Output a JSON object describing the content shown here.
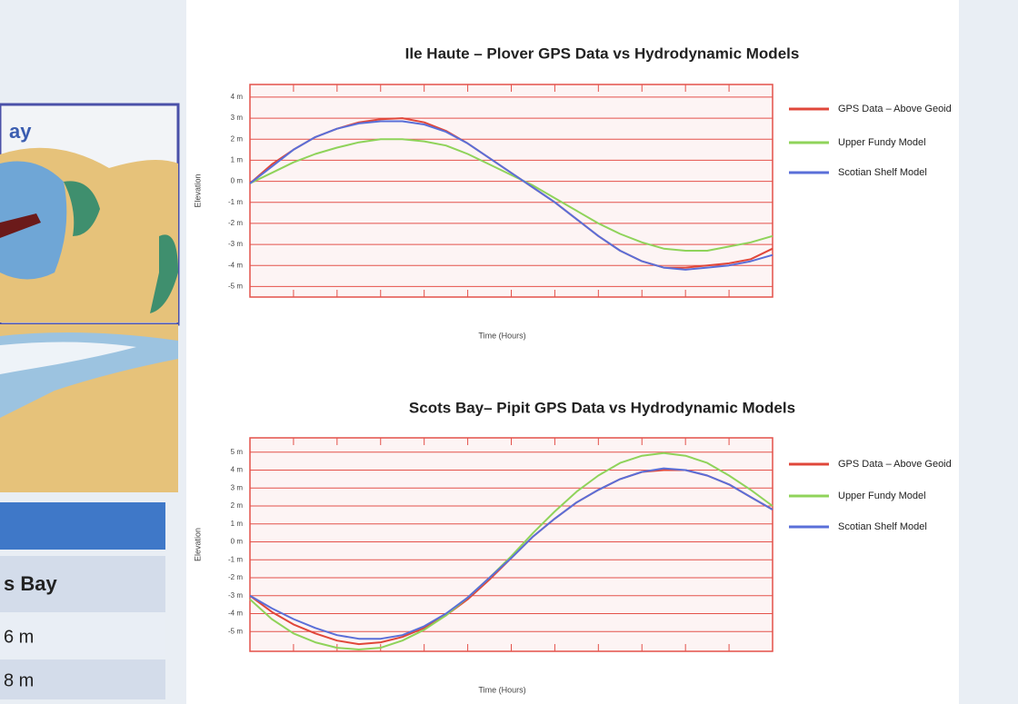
{
  "chart_data": [
    {
      "type": "line",
      "title": "Ile Haute – Plover GPS Data vs Hydrodynamic Models",
      "ylabel": "Elevation",
      "xlabel": "Time (Hours)",
      "categories": [
        null,
        null,
        null,
        null,
        null,
        null,
        null,
        null,
        null,
        null,
        null,
        null,
        null,
        null,
        null,
        null,
        null,
        null,
        null,
        null,
        null,
        null,
        null,
        null,
        null
      ],
      "ylim": [
        -5.5,
        4.6
      ],
      "yticks": [
        {
          "value": 4,
          "label": "4 m"
        },
        {
          "value": 3,
          "label": "3 m"
        },
        {
          "value": 2,
          "label": "2 m"
        },
        {
          "value": 1,
          "label": "1 m"
        },
        {
          "value": 0,
          "label": "0 m"
        },
        {
          "value": -1,
          "label": "-1 m"
        },
        {
          "value": -2,
          "label": "-2 m"
        },
        {
          "value": -3,
          "label": "-3 m"
        },
        {
          "value": -4,
          "label": "-4 m"
        },
        {
          "value": -5,
          "label": "-5 m"
        }
      ],
      "grid": true,
      "grid_color": "#e4514a",
      "series": [
        {
          "name": "GPS Data – Above Geoid",
          "color": "#e0473a",
          "values": [
            -0.1,
            0.8,
            1.5,
            2.1,
            2.5,
            2.8,
            2.95,
            3.0,
            2.8,
            2.4,
            1.8,
            1.1,
            0.4,
            -0.3,
            -1.0,
            -1.8,
            -2.6,
            -3.3,
            -3.8,
            -4.1,
            -4.1,
            -4.0,
            -3.9,
            -3.7,
            -3.2
          ]
        },
        {
          "name": "Upper Fundy Model",
          "color": "#8fd35a",
          "values": [
            -0.1,
            0.4,
            0.9,
            1.3,
            1.6,
            1.85,
            2.0,
            2.0,
            1.9,
            1.7,
            1.3,
            0.8,
            0.3,
            -0.2,
            -0.8,
            -1.4,
            -2.0,
            -2.5,
            -2.9,
            -3.2,
            -3.3,
            -3.3,
            -3.1,
            -2.9,
            -2.6
          ]
        },
        {
          "name": "Scotian Shelf Model",
          "color": "#5a6fd8",
          "values": [
            -0.1,
            0.7,
            1.5,
            2.1,
            2.5,
            2.75,
            2.85,
            2.85,
            2.7,
            2.35,
            1.8,
            1.1,
            0.4,
            -0.3,
            -1.0,
            -1.8,
            -2.6,
            -3.3,
            -3.8,
            -4.1,
            -4.2,
            -4.1,
            -4.0,
            -3.8,
            -3.5
          ]
        }
      ]
    },
    {
      "type": "line",
      "title": "Scots Bay– Pipit GPS Data vs Hydrodynamic Models",
      "ylabel": "Elevation",
      "xlabel": "Time (Hours)",
      "categories": [
        null,
        null,
        null,
        null,
        null,
        null,
        null,
        null,
        null,
        null,
        null,
        null,
        null,
        null,
        null,
        null,
        null,
        null,
        null,
        null,
        null,
        null,
        null,
        null,
        null
      ],
      "ylim": [
        -6.1,
        5.8
      ],
      "yticks": [
        {
          "value": 5,
          "label": "5 m"
        },
        {
          "value": 4,
          "label": "4 m"
        },
        {
          "value": 3,
          "label": "3 m"
        },
        {
          "value": 2,
          "label": "2 m"
        },
        {
          "value": 1,
          "label": "1 m"
        },
        {
          "value": 0,
          "label": "0 m"
        },
        {
          "value": -1,
          "label": "-1 m"
        },
        {
          "value": -2,
          "label": "-2 m"
        },
        {
          "value": -3,
          "label": "-3 m"
        },
        {
          "value": -4,
          "label": "-4 m"
        },
        {
          "value": -5,
          "label": "-5 m"
        }
      ],
      "grid": true,
      "grid_color": "#e4514a",
      "series": [
        {
          "name": "GPS Data – Above Geoid",
          "color": "#e0473a",
          "values": [
            -3.0,
            -3.9,
            -4.6,
            -5.1,
            -5.5,
            -5.7,
            -5.6,
            -5.3,
            -4.8,
            -4.1,
            -3.2,
            -2.1,
            -0.9,
            0.3,
            1.3,
            2.2,
            2.9,
            3.5,
            3.9,
            4.0,
            4.0,
            3.7,
            3.2,
            2.5,
            1.8
          ]
        },
        {
          "name": "Upper Fundy Model",
          "color": "#8fd35a",
          "values": [
            -3.2,
            -4.3,
            -5.1,
            -5.6,
            -5.9,
            -6.0,
            -5.9,
            -5.5,
            -4.9,
            -4.1,
            -3.1,
            -2.0,
            -0.8,
            0.5,
            1.7,
            2.8,
            3.7,
            4.4,
            4.8,
            4.95,
            4.8,
            4.4,
            3.7,
            2.9,
            2.0
          ]
        },
        {
          "name": "Scotian Shelf Model",
          "color": "#5a6fd8",
          "values": [
            -3.0,
            -3.7,
            -4.3,
            -4.8,
            -5.2,
            -5.4,
            -5.4,
            -5.2,
            -4.7,
            -4.0,
            -3.1,
            -2.0,
            -0.9,
            0.3,
            1.3,
            2.2,
            2.9,
            3.5,
            3.9,
            4.1,
            4.0,
            3.7,
            3.2,
            2.5,
            1.8
          ]
        }
      ]
    }
  ],
  "side_panel": {
    "map_label": "ay",
    "table": {
      "header": "s Bay",
      "rows": [
        "6 m",
        "8 m"
      ]
    }
  }
}
